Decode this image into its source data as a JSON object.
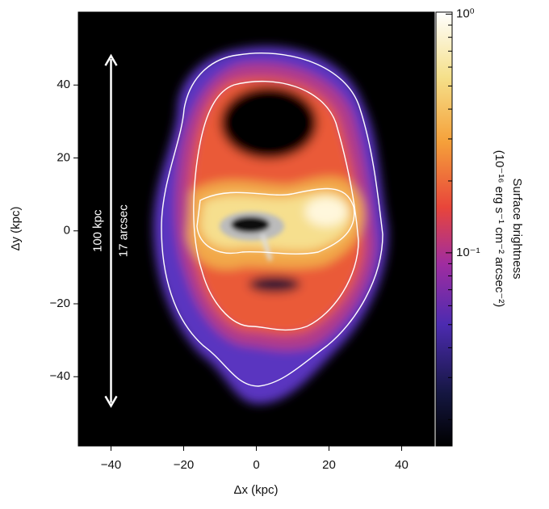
{
  "chart_data": {
    "type": "image",
    "xlabel": "Δx (kpc)",
    "ylabel": "Δy (kpc)",
    "xlim": [
      -49,
      49
    ],
    "ylim": [
      -59,
      60
    ],
    "xticks": [
      {
        "value": -40,
        "label": "−40"
      },
      {
        "value": -20,
        "label": "−20"
      },
      0,
      20,
      40
    ],
    "yticks": [
      {
        "value": -40,
        "label": "−40"
      },
      {
        "value": -20,
        "label": "−20"
      },
      0,
      20,
      40
    ],
    "colorbar": {
      "label": "Surface brightness",
      "units": "(10⁻¹⁶ erg s⁻¹ cm⁻² arcsec⁻²)",
      "log": true,
      "clim": [
        0.0155,
        1.02
      ],
      "ticks": [
        {
          "value": 1,
          "label": "10⁰"
        },
        {
          "value": 0.1,
          "label": "10⁻¹"
        }
      ],
      "minor_ticks": [
        0.02,
        0.03,
        0.04,
        0.05,
        0.06,
        0.07,
        0.08,
        0.09,
        0.2,
        0.3,
        0.4,
        0.5,
        0.6,
        0.7,
        0.8,
        0.9
      ]
    },
    "scale_bar": {
      "x": -40,
      "y": [
        -48,
        48
      ],
      "labels": [
        "100 kpc",
        "17 arcsec"
      ]
    }
  }
}
